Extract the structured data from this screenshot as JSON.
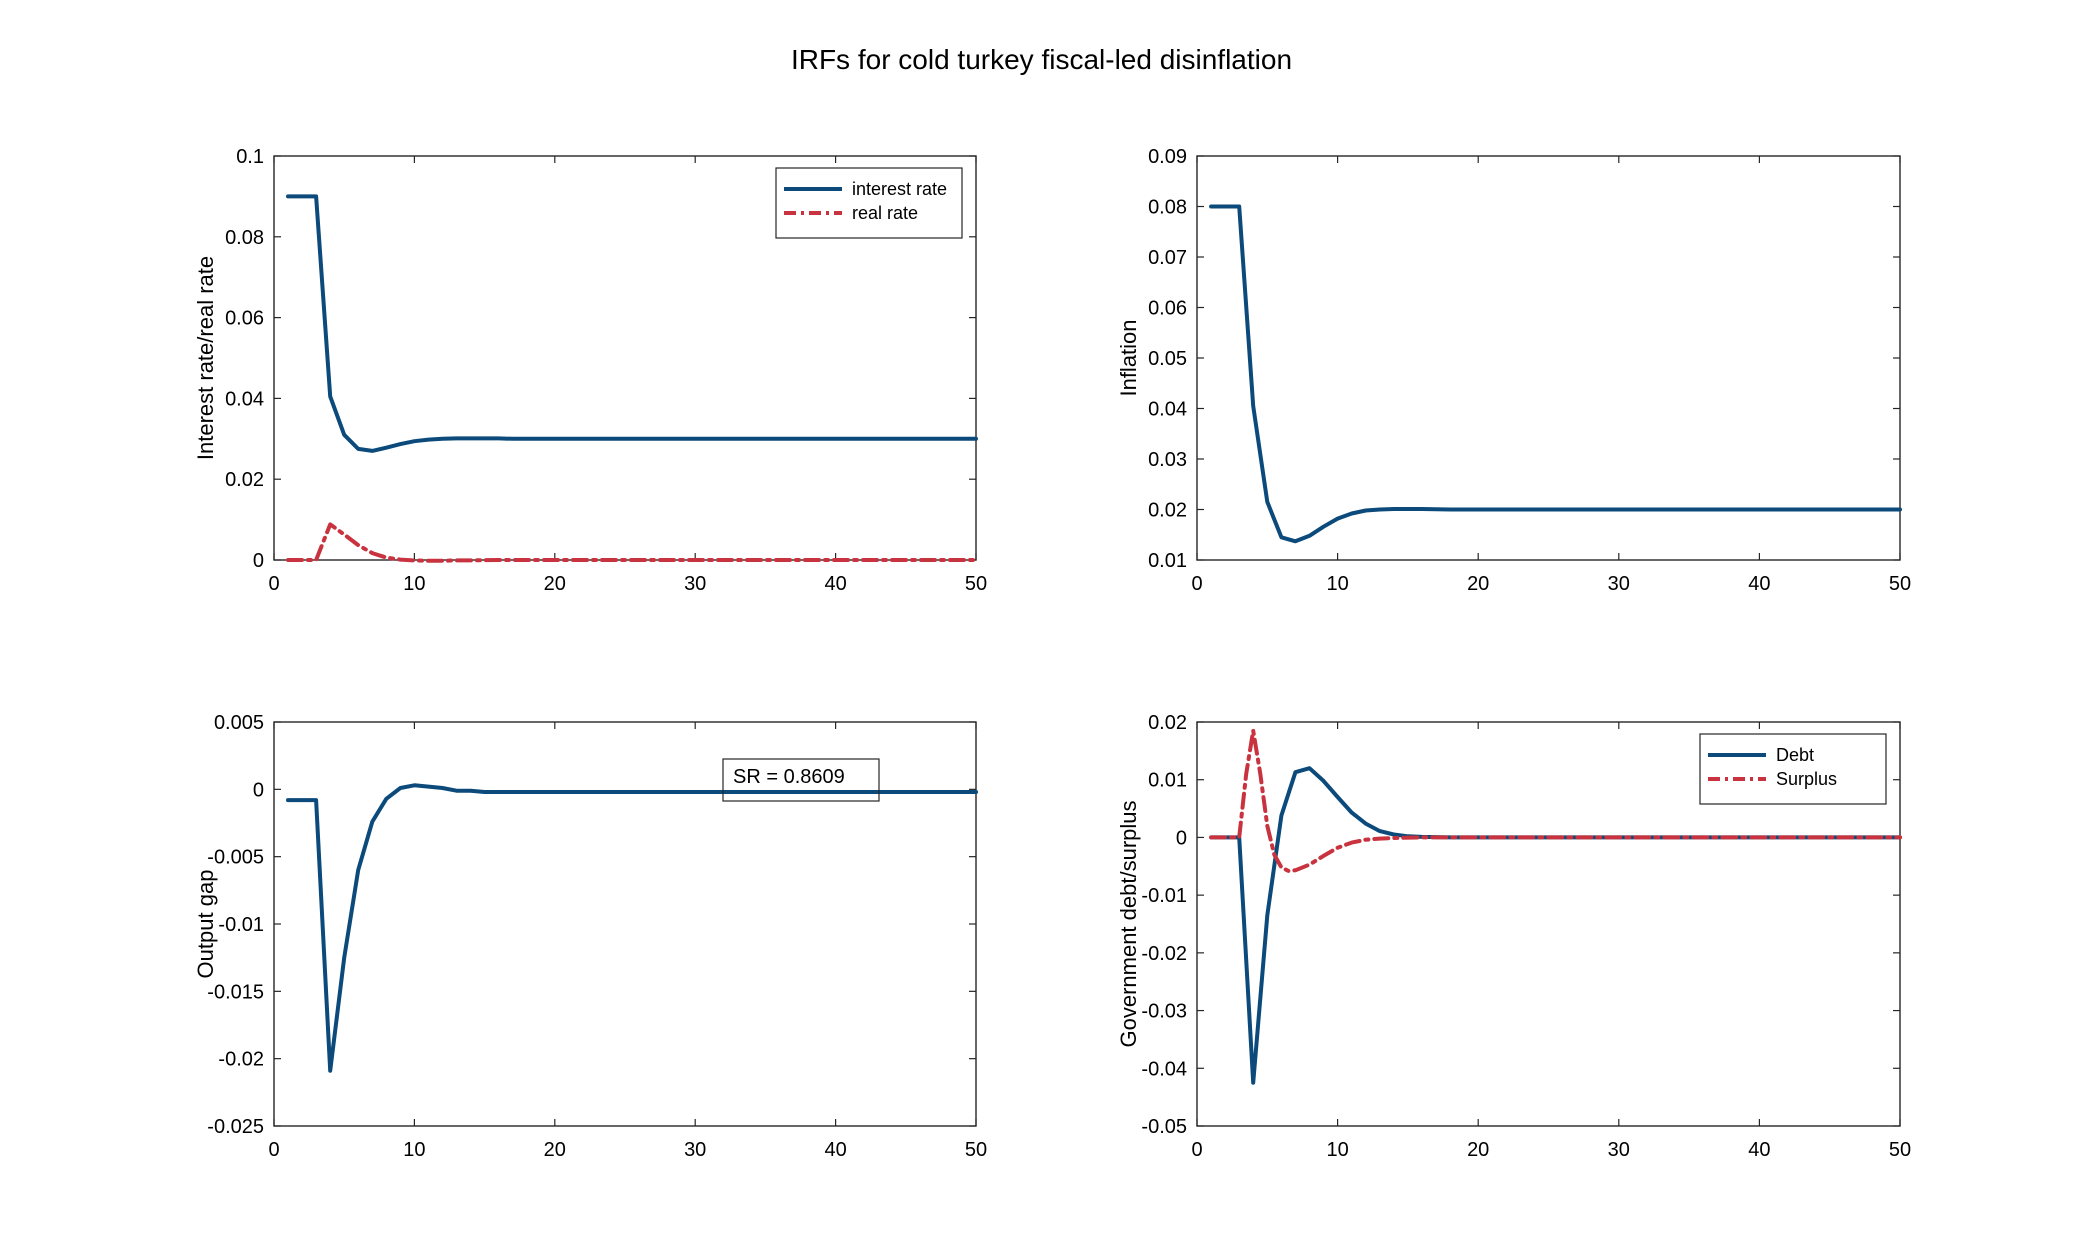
{
  "figure": {
    "title": "IRFs for cold turkey fiscal-led disinflation"
  },
  "colors": {
    "blue": "#0b4a7a",
    "red": "#c8333f",
    "axis": "#262626",
    "background": "#ffffff"
  },
  "chart_data": [
    {
      "type": "line",
      "ylabel": "Interest rate/real rate",
      "xlim": [
        0,
        50
      ],
      "ylim": [
        0,
        0.1
      ],
      "xticks": [
        0,
        10,
        20,
        30,
        40,
        50
      ],
      "xtick_labels": [
        "0",
        "10",
        "20",
        "30",
        "40",
        "50"
      ],
      "yticks": [
        0,
        0.02,
        0.04,
        0.06,
        0.08,
        0.1
      ],
      "ytick_labels": [
        "0",
        "0.02",
        "0.04",
        "0.06",
        "0.08",
        "0.1"
      ],
      "legend": {
        "location": "top-right"
      },
      "series": [
        {
          "name": "interest rate",
          "color": "#0b4a7a",
          "style": "solid",
          "x": [
            1,
            2,
            3,
            4,
            5,
            6,
            7,
            8,
            9,
            10,
            11,
            12,
            13,
            14,
            15,
            16,
            17,
            18,
            20,
            25,
            30,
            35,
            40,
            45,
            50
          ],
          "y": [
            0.09,
            0.09,
            0.09,
            0.0405,
            0.031,
            0.0275,
            0.027,
            0.0278,
            0.0287,
            0.0294,
            0.0298,
            0.03,
            0.0301,
            0.0301,
            0.0301,
            0.0301,
            0.03,
            0.03,
            0.03,
            0.03,
            0.03,
            0.03,
            0.03,
            0.03,
            0.03
          ]
        },
        {
          "name": "real rate",
          "color": "#c8333f",
          "style": "dashdot",
          "x": [
            1,
            2,
            3,
            4,
            5,
            6,
            7,
            8,
            9,
            10,
            11,
            12,
            13,
            14,
            16,
            20,
            25,
            30,
            35,
            40,
            45,
            50
          ],
          "y": [
            0,
            0,
            0,
            0.0088,
            0.0063,
            0.0037,
            0.0017,
            0.0006,
            0.0001,
            -0.0001,
            -0.0002,
            -0.0002,
            -0.0001,
            -0.0001,
            0,
            0,
            0,
            0,
            0,
            0,
            0,
            0
          ]
        }
      ]
    },
    {
      "type": "line",
      "ylabel": "Inflation",
      "xlim": [
        0,
        50
      ],
      "ylim": [
        0.01,
        0.09
      ],
      "xticks": [
        0,
        10,
        20,
        30,
        40,
        50
      ],
      "xtick_labels": [
        "0",
        "10",
        "20",
        "30",
        "40",
        "50"
      ],
      "yticks": [
        0.01,
        0.02,
        0.03,
        0.04,
        0.05,
        0.06,
        0.07,
        0.08,
        0.09
      ],
      "ytick_labels": [
        "0.01",
        "0.02",
        "0.03",
        "0.04",
        "0.05",
        "0.06",
        "0.07",
        "0.08",
        "0.09"
      ],
      "series": [
        {
          "color": "#0b4a7a",
          "style": "solid",
          "x": [
            1,
            2,
            3,
            4,
            5,
            6,
            7,
            8,
            9,
            10,
            11,
            12,
            13,
            14,
            15,
            16,
            18,
            20,
            25,
            30,
            35,
            40,
            45,
            50
          ],
          "y": [
            0.08,
            0.08,
            0.08,
            0.0405,
            0.0215,
            0.0145,
            0.0137,
            0.0148,
            0.0166,
            0.0182,
            0.0192,
            0.0198,
            0.02,
            0.0201,
            0.0201,
            0.0201,
            0.02,
            0.02,
            0.02,
            0.02,
            0.02,
            0.02,
            0.02,
            0.02
          ]
        }
      ]
    },
    {
      "type": "line",
      "ylabel": "Output gap",
      "xlim": [
        0,
        50
      ],
      "ylim": [
        -0.025,
        0.005
      ],
      "xticks": [
        0,
        10,
        20,
        30,
        40,
        50
      ],
      "xtick_labels": [
        "0",
        "10",
        "20",
        "30",
        "40",
        "50"
      ],
      "yticks": [
        -0.025,
        -0.02,
        -0.015,
        -0.01,
        -0.005,
        0,
        0.005
      ],
      "ytick_labels": [
        "-0.025",
        "-0.02",
        "-0.015",
        "-0.01",
        "-0.005",
        "0",
        "0.005"
      ],
      "annotation": {
        "text": "SR = 0.8609",
        "location": "upper-right"
      },
      "series": [
        {
          "color": "#0b4a7a",
          "style": "solid",
          "x": [
            1,
            2,
            3,
            4,
            5,
            6,
            7,
            8,
            9,
            10,
            11,
            12,
            13,
            14,
            15,
            16,
            18,
            20,
            25,
            30,
            35,
            40,
            45,
            50
          ],
          "y": [
            -0.0008,
            -0.0008,
            -0.0008,
            -0.0209,
            -0.0125,
            -0.006,
            -0.0024,
            -0.0007,
            0.0001,
            0.0003,
            0.0002,
            0.0001,
            -0.0001,
            -0.0001,
            -0.0002,
            -0.0002,
            -0.0002,
            -0.0002,
            -0.0002,
            -0.0002,
            -0.0002,
            -0.0002,
            -0.0002,
            -0.0002
          ]
        }
      ]
    },
    {
      "type": "line",
      "ylabel": "Government debt/surplus",
      "xlim": [
        0,
        50
      ],
      "ylim": [
        -0.05,
        0.02
      ],
      "xticks": [
        0,
        10,
        20,
        30,
        40,
        50
      ],
      "xtick_labels": [
        "0",
        "10",
        "20",
        "30",
        "40",
        "50"
      ],
      "yticks": [
        -0.05,
        -0.04,
        -0.03,
        -0.02,
        -0.01,
        0,
        0.01,
        0.02
      ],
      "ytick_labels": [
        "-0.05",
        "-0.04",
        "-0.03",
        "-0.02",
        "-0.01",
        "0",
        "0.01",
        "0.02"
      ],
      "legend": {
        "location": "top-right"
      },
      "series": [
        {
          "name": "Debt",
          "color": "#0b4a7a",
          "style": "solid",
          "x": [
            1,
            2,
            3,
            4,
            5,
            6,
            7,
            8,
            9,
            10,
            11,
            12,
            13,
            14,
            15,
            16,
            18,
            20,
            25,
            30,
            35,
            40,
            45,
            50
          ],
          "y": [
            0,
            0,
            0,
            -0.0425,
            -0.0135,
            0.0038,
            0.0113,
            0.012,
            0.0098,
            0.007,
            0.0043,
            0.0024,
            0.0011,
            0.0005,
            0.0002,
            0.0001,
            0,
            0,
            0,
            0,
            0,
            0,
            0,
            0
          ]
        },
        {
          "name": "Surplus",
          "color": "#c8333f",
          "style": "dashdot",
          "x": [
            1,
            2,
            3,
            3.5,
            4,
            4.5,
            5,
            5.5,
            6,
            6.5,
            7,
            8,
            9,
            10,
            11,
            12,
            13,
            14,
            16,
            20,
            25,
            30,
            35,
            40,
            45,
            50
          ],
          "y": [
            0,
            0,
            0,
            0.011,
            0.0185,
            0.011,
            0.002,
            -0.003,
            -0.0052,
            -0.0058,
            -0.0057,
            -0.0047,
            -0.0032,
            -0.0018,
            -0.0009,
            -0.0004,
            -0.0002,
            -0.0001,
            0,
            0,
            0,
            0,
            0,
            0,
            0,
            0
          ]
        }
      ]
    }
  ]
}
